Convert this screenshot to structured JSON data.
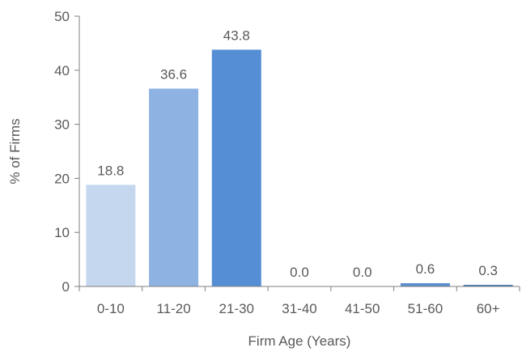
{
  "chart_data": {
    "type": "bar",
    "title": "",
    "xlabel": "Firm Age (Years)",
    "ylabel": "% of Firms",
    "categories": [
      "0-10",
      "11-20",
      "21-30",
      "31-40",
      "41-50",
      "51-60",
      "60+"
    ],
    "values": [
      18.8,
      36.6,
      43.8,
      0.0,
      0.0,
      0.6,
      0.3
    ],
    "data_labels": [
      "18.8",
      "36.6",
      "43.8",
      "0.0",
      "0.0",
      "0.6",
      "0.3"
    ],
    "ylim": [
      0,
      50
    ],
    "yticks": [
      0,
      10,
      20,
      30,
      40,
      50
    ],
    "ytick_labels": [
      "0",
      "10",
      "20",
      "30",
      "40",
      "50"
    ],
    "grid": false,
    "legend": "none",
    "bar_colors": [
      "#c5d7ef",
      "#8eb3e3",
      "#558ed5",
      "#5b8ed0",
      "#5b8ed0",
      "#5b8ed0",
      "#4a7eb8"
    ]
  }
}
